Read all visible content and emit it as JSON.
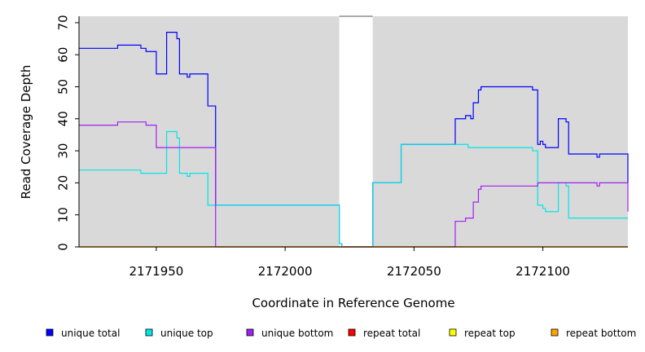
{
  "chart_data": {
    "type": "line",
    "title": "",
    "xlabel": "Coordinate in Reference Genome",
    "ylabel": "Read Coverage Depth",
    "xlim": [
      2171920,
      2172133
    ],
    "ylim": [
      0,
      72
    ],
    "xticks": [
      2171950,
      2172000,
      2172050,
      2172100
    ],
    "yticks": [
      0,
      10,
      20,
      30,
      40,
      50,
      60,
      70
    ],
    "shaded_regions": [
      [
        2171920,
        2172021
      ],
      [
        2172034,
        2172133
      ]
    ],
    "legend_position": "bottom",
    "series": [
      {
        "name": "unique total",
        "color": "#0000ff",
        "points": [
          [
            2171920,
            62
          ],
          [
            2171935,
            62
          ],
          [
            2171935,
            63
          ],
          [
            2171944,
            63
          ],
          [
            2171944,
            62
          ],
          [
            2171946,
            62
          ],
          [
            2171946,
            61
          ],
          [
            2171950,
            61
          ],
          [
            2171950,
            54
          ],
          [
            2171954,
            54
          ],
          [
            2171954,
            67
          ],
          [
            2171958,
            67
          ],
          [
            2171958,
            65
          ],
          [
            2171959,
            65
          ],
          [
            2171959,
            54
          ],
          [
            2171962,
            54
          ],
          [
            2171962,
            53
          ],
          [
            2171963,
            53
          ],
          [
            2171963,
            54
          ],
          [
            2171970,
            54
          ],
          [
            2171970,
            44
          ],
          [
            2171973,
            44
          ],
          [
            2171973,
            13
          ],
          [
            2172021,
            13
          ],
          [
            2172021,
            1
          ],
          [
            2172022,
            1
          ],
          [
            2172022,
            0
          ],
          [
            2172034,
            0
          ],
          [
            2172034,
            20
          ],
          [
            2172045,
            20
          ],
          [
            2172045,
            32
          ],
          [
            2172066,
            32
          ],
          [
            2172066,
            40
          ],
          [
            2172070,
            40
          ],
          [
            2172070,
            41
          ],
          [
            2172072,
            41
          ],
          [
            2172072,
            40
          ],
          [
            2172073,
            40
          ],
          [
            2172073,
            45
          ],
          [
            2172075,
            45
          ],
          [
            2172075,
            49
          ],
          [
            2172076,
            49
          ],
          [
            2172076,
            50
          ],
          [
            2172096,
            50
          ],
          [
            2172096,
            49
          ],
          [
            2172098,
            49
          ],
          [
            2172098,
            32
          ],
          [
            2172099,
            32
          ],
          [
            2172099,
            33
          ],
          [
            2172100,
            33
          ],
          [
            2172100,
            32
          ],
          [
            2172101,
            32
          ],
          [
            2172101,
            31
          ],
          [
            2172106,
            31
          ],
          [
            2172106,
            40
          ],
          [
            2172109,
            40
          ],
          [
            2172109,
            39
          ],
          [
            2172110,
            39
          ],
          [
            2172110,
            29
          ],
          [
            2172121,
            29
          ],
          [
            2172121,
            28
          ],
          [
            2172122,
            28
          ],
          [
            2172122,
            29
          ],
          [
            2172133,
            29
          ],
          [
            2172133,
            20
          ]
        ]
      },
      {
        "name": "unique top",
        "color": "#00e5e5",
        "points": [
          [
            2171920,
            24
          ],
          [
            2171944,
            24
          ],
          [
            2171944,
            23
          ],
          [
            2171954,
            23
          ],
          [
            2171954,
            36
          ],
          [
            2171958,
            36
          ],
          [
            2171958,
            34
          ],
          [
            2171959,
            34
          ],
          [
            2171959,
            23
          ],
          [
            2171962,
            23
          ],
          [
            2171962,
            22
          ],
          [
            2171963,
            22
          ],
          [
            2171963,
            23
          ],
          [
            2171970,
            23
          ],
          [
            2171970,
            13
          ],
          [
            2172021,
            13
          ],
          [
            2172021,
            1
          ],
          [
            2172022,
            1
          ],
          [
            2172022,
            0
          ],
          [
            2172034,
            0
          ],
          [
            2172034,
            20
          ],
          [
            2172045,
            20
          ],
          [
            2172045,
            32
          ],
          [
            2172071,
            32
          ],
          [
            2172071,
            31
          ],
          [
            2172096,
            31
          ],
          [
            2172096,
            30
          ],
          [
            2172098,
            30
          ],
          [
            2172098,
            13
          ],
          [
            2172100,
            13
          ],
          [
            2172100,
            12
          ],
          [
            2172101,
            12
          ],
          [
            2172101,
            11
          ],
          [
            2172106,
            11
          ],
          [
            2172106,
            20
          ],
          [
            2172109,
            20
          ],
          [
            2172109,
            19
          ],
          [
            2172110,
            19
          ],
          [
            2172110,
            9
          ],
          [
            2172133,
            9
          ],
          [
            2172133,
            9
          ]
        ]
      },
      {
        "name": "unique bottom",
        "color": "#a020f0",
        "points": [
          [
            2171920,
            38
          ],
          [
            2171935,
            38
          ],
          [
            2171935,
            39
          ],
          [
            2171946,
            39
          ],
          [
            2171946,
            38
          ],
          [
            2171950,
            38
          ],
          [
            2171950,
            31
          ],
          [
            2171973,
            31
          ],
          [
            2171973,
            0
          ],
          [
            2172066,
            0
          ],
          [
            2172066,
            8
          ],
          [
            2172070,
            8
          ],
          [
            2172070,
            9
          ],
          [
            2172073,
            9
          ],
          [
            2172073,
            14
          ],
          [
            2172075,
            14
          ],
          [
            2172075,
            18
          ],
          [
            2172076,
            18
          ],
          [
            2172076,
            19
          ],
          [
            2172098,
            19
          ],
          [
            2172098,
            20
          ],
          [
            2172121,
            20
          ],
          [
            2172121,
            19
          ],
          [
            2172122,
            19
          ],
          [
            2172122,
            20
          ],
          [
            2172133,
            20
          ],
          [
            2172133,
            11
          ]
        ]
      },
      {
        "name": "repeat total",
        "color": "#ff0000",
        "points": [
          [
            2171920,
            0
          ],
          [
            2172133,
            0
          ]
        ]
      },
      {
        "name": "repeat top",
        "color": "#ffff00",
        "points": [
          [
            2171920,
            0
          ],
          [
            2172133,
            0
          ]
        ]
      },
      {
        "name": "repeat bottom",
        "color": "#ffa500",
        "points": [
          [
            2171920,
            0
          ],
          [
            2172133,
            0
          ]
        ]
      }
    ]
  }
}
